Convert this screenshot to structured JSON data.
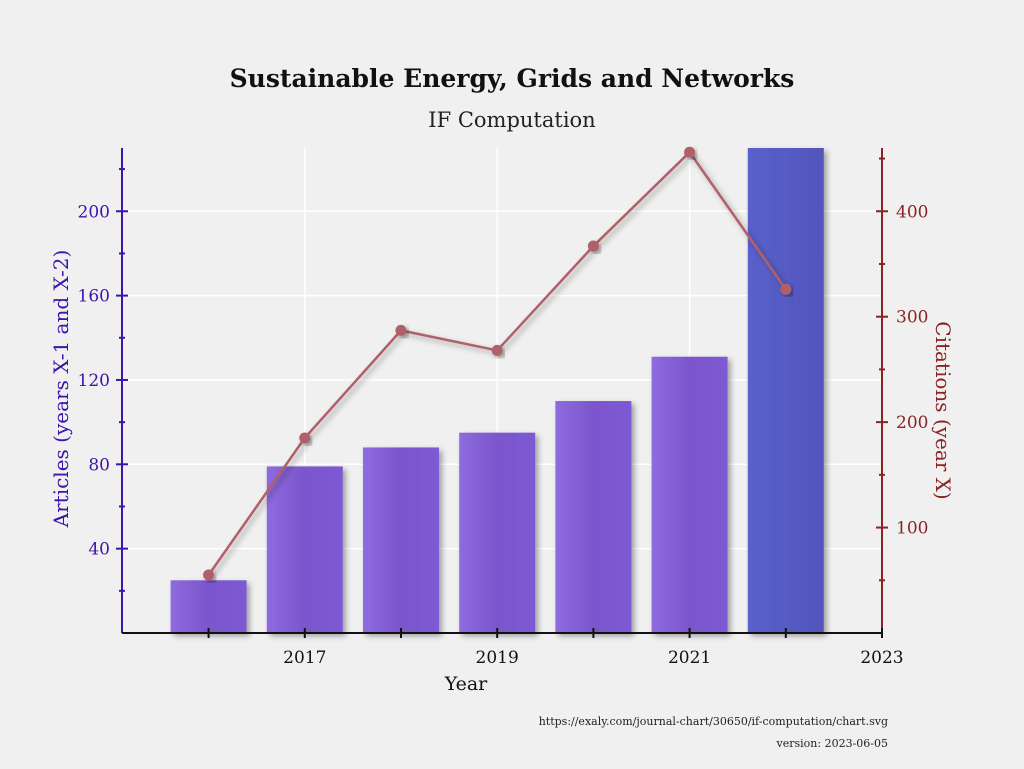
{
  "title": "Sustainable Energy, Grids and Networks",
  "subtitle": "IF Computation",
  "footer": {
    "url": "https://exaly.com/journal-chart/30650/if-computation/chart.svg",
    "version": "version: 2023-06-05"
  },
  "colors": {
    "bar": "#7b55cc",
    "bar_highlight": "#5458be",
    "line": "#b06068",
    "left_axis": "#3d14aa",
    "right_axis": "#8a2323"
  },
  "chart_data": {
    "type": "bar",
    "xlabel": "Year",
    "ylabel_left": "Articles (years X-1 and X-2)",
    "ylabel_right": "Citations (year X)",
    "x_ticks": [
      "2017",
      "2019",
      "2021",
      "2023"
    ],
    "y_left_ticks": [
      "40",
      "80",
      "120",
      "160",
      "200"
    ],
    "y_right_ticks": [
      "100",
      "200",
      "300",
      "400"
    ],
    "y_left_range": [
      0,
      230
    ],
    "y_right_range": [
      0,
      460
    ],
    "x_range": [
      2015.1,
      2023
    ],
    "grid": true,
    "series": [
      {
        "type": "bar",
        "axis": "left",
        "x": [
          2016,
          2017,
          2018,
          2019,
          2020,
          2021,
          2022
        ],
        "values": [
          25,
          79,
          88,
          95,
          110,
          131,
          231
        ]
      },
      {
        "type": "line",
        "axis": "right",
        "x": [
          2016,
          2017,
          2018,
          2019,
          2020,
          2021,
          2022
        ],
        "values": [
          55,
          185,
          287,
          268,
          367,
          456,
          326
        ]
      }
    ]
  }
}
